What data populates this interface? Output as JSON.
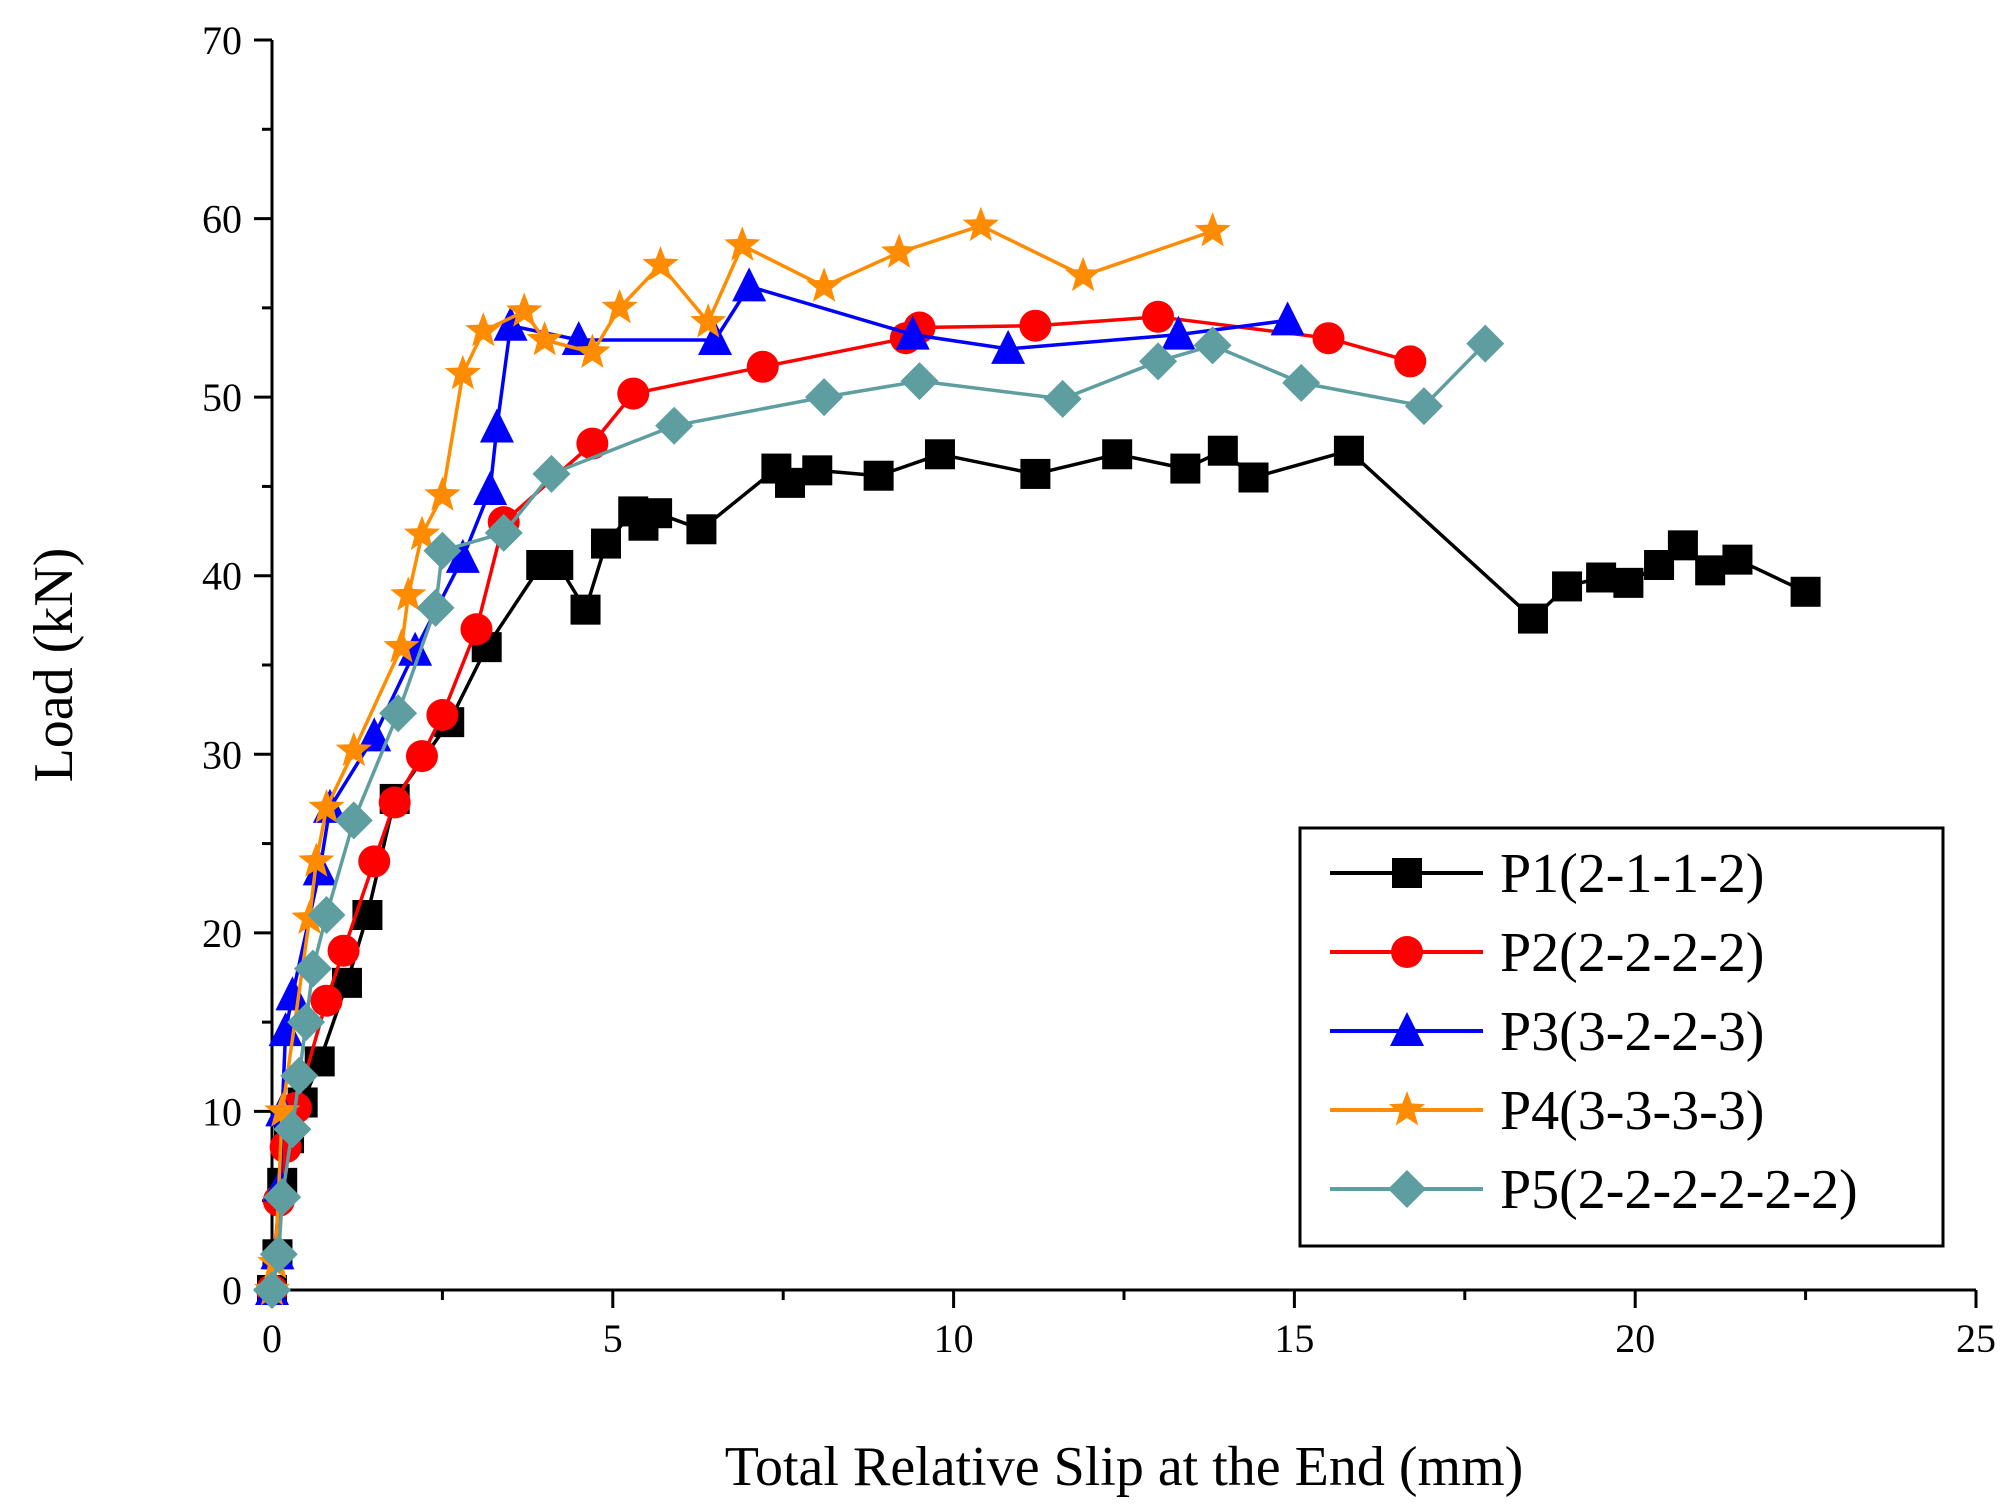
{
  "chart_data": {
    "type": "line",
    "title": "",
    "xlabel": "Total Relative Slip at the End (mm)",
    "ylabel": "Load (kN)",
    "xlim": [
      0,
      25
    ],
    "ylim": [
      0,
      70
    ],
    "xticks": [
      0,
      5,
      10,
      15,
      20,
      25
    ],
    "yticks": [
      0,
      10,
      20,
      30,
      40,
      50,
      60,
      70
    ],
    "legend_position": "bottom-right",
    "grid": false,
    "series": [
      {
        "name": "P1(2-1-1-2)",
        "color": "#000000",
        "marker": "square",
        "points": [
          [
            0.0,
            0.0
          ],
          [
            0.08,
            2.0
          ],
          [
            0.15,
            6.0
          ],
          [
            0.25,
            8.5
          ],
          [
            0.45,
            10.5
          ],
          [
            0.7,
            12.8
          ],
          [
            1.1,
            17.2
          ],
          [
            1.4,
            21.0
          ],
          [
            1.8,
            27.5
          ],
          [
            2.6,
            31.8
          ],
          [
            3.15,
            36.0
          ],
          [
            3.95,
            40.6
          ],
          [
            4.2,
            40.6
          ],
          [
            4.6,
            38.1
          ],
          [
            4.9,
            41.8
          ],
          [
            5.3,
            43.6
          ],
          [
            5.45,
            42.8
          ],
          [
            5.65,
            43.5
          ],
          [
            6.3,
            42.6
          ],
          [
            7.4,
            46.0
          ],
          [
            7.6,
            45.2
          ],
          [
            8.0,
            45.9
          ],
          [
            8.9,
            45.6
          ],
          [
            9.8,
            46.8
          ],
          [
            11.2,
            45.7
          ],
          [
            12.4,
            46.8
          ],
          [
            13.4,
            46.0
          ],
          [
            13.95,
            47.0
          ],
          [
            14.4,
            45.5
          ],
          [
            15.8,
            47.0
          ],
          [
            18.5,
            37.6
          ],
          [
            19.0,
            39.4
          ],
          [
            19.5,
            39.9
          ],
          [
            19.9,
            39.6
          ],
          [
            20.35,
            40.6
          ],
          [
            20.7,
            41.7
          ],
          [
            21.1,
            40.3
          ],
          [
            21.5,
            40.9
          ],
          [
            22.5,
            39.1
          ]
        ]
      },
      {
        "name": "P2(2-2-2-2)",
        "color": "#ff0000",
        "marker": "circle",
        "points": [
          [
            0.0,
            0.0
          ],
          [
            0.1,
            5.0
          ],
          [
            0.2,
            8.0
          ],
          [
            0.35,
            10.2
          ],
          [
            0.8,
            16.2
          ],
          [
            1.05,
            19.0
          ],
          [
            1.5,
            24.0
          ],
          [
            1.8,
            27.3
          ],
          [
            2.2,
            29.9
          ],
          [
            2.5,
            32.2
          ],
          [
            3.0,
            37.0
          ],
          [
            3.4,
            43.0
          ],
          [
            4.7,
            47.4
          ],
          [
            5.3,
            50.2
          ],
          [
            7.2,
            51.7
          ],
          [
            9.3,
            53.3
          ],
          [
            9.5,
            53.9
          ],
          [
            11.2,
            54.0
          ],
          [
            13.0,
            54.5
          ],
          [
            15.5,
            53.3
          ],
          [
            16.7,
            52.0
          ]
        ]
      },
      {
        "name": "P3(3-2-2-3)",
        "color": "#0000ff",
        "marker": "triangle",
        "points": [
          [
            0.0,
            0.0
          ],
          [
            0.08,
            2.0
          ],
          [
            0.12,
            5.8
          ],
          [
            0.15,
            10.0
          ],
          [
            0.2,
            14.5
          ],
          [
            0.3,
            16.5
          ],
          [
            0.7,
            23.5
          ],
          [
            0.85,
            27.0
          ],
          [
            1.5,
            31.0
          ],
          [
            2.1,
            35.8
          ],
          [
            2.8,
            41.0
          ],
          [
            3.2,
            44.8
          ],
          [
            3.3,
            48.3
          ],
          [
            3.5,
            54.0
          ],
          [
            4.5,
            53.2
          ],
          [
            6.5,
            53.2
          ],
          [
            7.0,
            56.2
          ],
          [
            9.4,
            53.5
          ],
          [
            10.8,
            52.7
          ],
          [
            13.3,
            53.5
          ],
          [
            14.9,
            54.3
          ]
        ]
      },
      {
        "name": "P4(3-3-3-3)",
        "color": "#ff8c00",
        "marker": "star",
        "points": [
          [
            0.0,
            0.0
          ],
          [
            0.05,
            1.5
          ],
          [
            0.15,
            10.0
          ],
          [
            0.55,
            20.8
          ],
          [
            0.65,
            24.0
          ],
          [
            0.8,
            27.0
          ],
          [
            1.2,
            30.2
          ],
          [
            1.9,
            36.0
          ],
          [
            2.0,
            38.9
          ],
          [
            2.2,
            42.3
          ],
          [
            2.5,
            44.5
          ],
          [
            2.8,
            51.3
          ],
          [
            3.1,
            53.7
          ],
          [
            3.7,
            54.8
          ],
          [
            4.0,
            53.2
          ],
          [
            4.7,
            52.5
          ],
          [
            5.1,
            55.0
          ],
          [
            5.7,
            57.4
          ],
          [
            6.4,
            54.2
          ],
          [
            6.9,
            58.5
          ],
          [
            8.1,
            56.2
          ],
          [
            9.2,
            58.1
          ],
          [
            10.4,
            59.6
          ],
          [
            11.9,
            56.8
          ],
          [
            13.8,
            59.3
          ]
        ]
      },
      {
        "name": "P5(2-2-2-2-2-2)",
        "color": "#5f9ea0",
        "marker": "diamond",
        "points": [
          [
            0.0,
            0.0
          ],
          [
            0.1,
            2.0
          ],
          [
            0.15,
            5.2
          ],
          [
            0.3,
            9.0
          ],
          [
            0.4,
            12.0
          ],
          [
            0.5,
            15.0
          ],
          [
            0.6,
            18.0
          ],
          [
            0.8,
            21.0
          ],
          [
            1.2,
            26.3
          ],
          [
            1.85,
            32.3
          ],
          [
            2.4,
            38.2
          ],
          [
            2.5,
            41.4
          ],
          [
            3.4,
            42.4
          ],
          [
            4.1,
            45.7
          ],
          [
            5.9,
            48.4
          ],
          [
            8.1,
            50.0
          ],
          [
            9.5,
            50.9
          ],
          [
            11.6,
            49.9
          ],
          [
            13.0,
            52.0
          ],
          [
            13.8,
            52.9
          ],
          [
            15.1,
            50.8
          ],
          [
            16.9,
            49.5
          ],
          [
            17.8,
            53.0
          ]
        ]
      }
    ]
  }
}
